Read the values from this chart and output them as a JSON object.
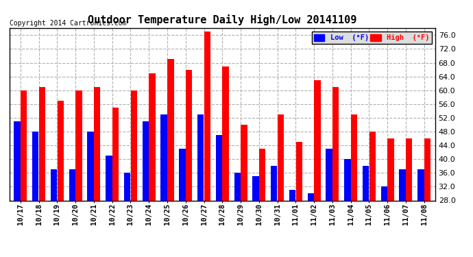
{
  "title": "Outdoor Temperature Daily High/Low 20141109",
  "copyright": "Copyright 2014 Cartronics.com",
  "categories": [
    "10/17",
    "10/18",
    "10/19",
    "10/20",
    "10/21",
    "10/22",
    "10/23",
    "10/24",
    "10/25",
    "10/26",
    "10/27",
    "10/28",
    "10/29",
    "10/30",
    "10/31",
    "11/01",
    "11/02",
    "11/03",
    "11/04",
    "11/05",
    "11/06",
    "11/07",
    "11/08"
  ],
  "high": [
    60,
    61,
    57,
    60,
    61,
    55,
    60,
    65,
    69,
    66,
    77,
    67,
    50,
    43,
    53,
    45,
    63,
    61,
    53,
    48,
    46,
    46,
    46
  ],
  "low": [
    51,
    48,
    37,
    37,
    48,
    41,
    36,
    51,
    53,
    43,
    53,
    47,
    36,
    35,
    38,
    31,
    30,
    43,
    40,
    38,
    32,
    37,
    37
  ],
  "high_color": "#ff0000",
  "low_color": "#0000ff",
  "bg_color": "#ffffff",
  "plot_bg_color": "#ffffff",
  "grid_color": "#b0b0b0",
  "ylim_min": 28.0,
  "ylim_max": 78.0,
  "yticks": [
    28.0,
    32.0,
    36.0,
    40.0,
    44.0,
    48.0,
    52.0,
    56.0,
    60.0,
    64.0,
    68.0,
    72.0,
    76.0
  ],
  "bar_width": 0.35,
  "bar_gap": 0.01
}
